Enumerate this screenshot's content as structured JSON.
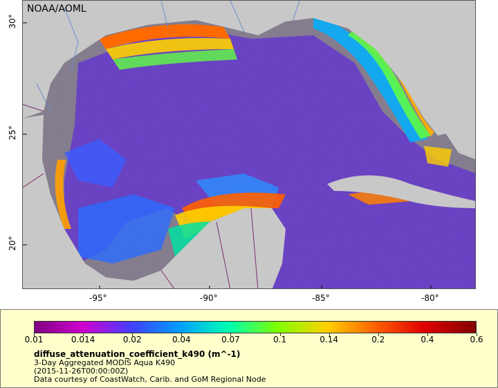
{
  "map": {
    "watermark": "NOAA/AOML",
    "x_ticks": [
      "-95°",
      "-90°",
      "-85°",
      "-80°"
    ],
    "y_ticks": [
      "30°",
      "25°",
      "20°"
    ]
  },
  "colors": {
    "land": "#c8c8c8",
    "no_data": "#808080",
    "border": "#7a2b6b",
    "river": "#6a8fd0",
    "legend_bg": "#ffffcc"
  },
  "legend": {
    "scale": [
      "0.01",
      "0.014",
      "0.02",
      "0.04",
      "0.07",
      "0.1",
      "0.14",
      "0.2",
      "0.4",
      "0.6"
    ],
    "title": "diffuse_attenuation_coefficient_k490 (m^-1)",
    "subtitle": "3-Day Aggregated MODIS Aqua K490",
    "time": "(2015-11-26T00:00:00Z)",
    "credit": "Data courtesy of CoastWatch, Carib. and GoM Regional Node"
  }
}
